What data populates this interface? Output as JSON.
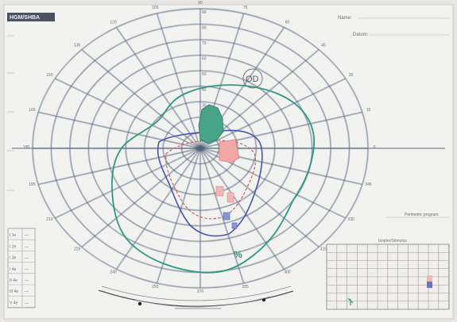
{
  "form": {
    "logo_text": "HGM/SHBA",
    "name_label": "Name:",
    "date_label": "Datum:",
    "program_label": "Perimetric program",
    "subtable_title": "Isopter/Stimulus"
  },
  "chart": {
    "eye_label": "OD",
    "green_mark": "%",
    "meridians": [
      "0",
      "15",
      "30",
      "45",
      "60",
      "75",
      "90",
      "105",
      "120",
      "135",
      "150",
      "165",
      "180",
      "195",
      "210",
      "225",
      "240",
      "255",
      "270",
      "285",
      "300",
      "315",
      "330",
      "345"
    ],
    "ring_labels": [
      "10",
      "20",
      "30",
      "40",
      "50",
      "60",
      "70",
      "80",
      "90"
    ]
  },
  "legend_table": {
    "rows": [
      [
        "I 1e",
        "—"
      ],
      [
        "I 2e",
        "—"
      ],
      [
        "I 3e",
        "—"
      ],
      [
        "I 4e",
        "—"
      ],
      [
        "II 4e",
        "—"
      ],
      [
        "III 4e",
        "—"
      ],
      [
        "V 4e",
        "—"
      ]
    ]
  },
  "colors": {
    "grid": "#4c5d74",
    "green_isopter": "#2c9a7e",
    "blue_isopter": "#4453b8",
    "red_isopter": "#d45d5d"
  }
}
